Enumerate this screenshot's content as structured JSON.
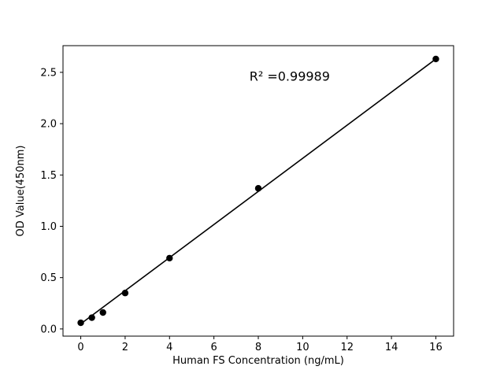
{
  "figure": {
    "background": "#ffffff",
    "frame_color": "#000000"
  },
  "chart_data": {
    "type": "scatter",
    "title": "",
    "xlabel": "Human FS Concentration (ng/mL)",
    "ylabel": "OD Value(450nm)",
    "x": [
      0,
      0.5,
      1,
      2,
      4,
      8,
      16
    ],
    "y": [
      0.06,
      0.11,
      0.16,
      0.35,
      0.69,
      1.37,
      2.63
    ],
    "trendline": {
      "x": [
        0,
        16
      ],
      "y": [
        0.05,
        2.63
      ]
    },
    "annotation": {
      "text": "R² =0.99989",
      "x": 7.6,
      "y": 2.42
    },
    "x_tick_values": [
      0,
      2,
      4,
      6,
      8,
      10,
      12,
      14,
      16
    ],
    "x_tick_labels": [
      "0",
      "2",
      "4",
      "6",
      "8",
      "10",
      "12",
      "14",
      "16"
    ],
    "y_tick_values": [
      0.0,
      0.5,
      1.0,
      1.5,
      2.0,
      2.5
    ],
    "y_tick_labels": [
      "0.0",
      "0.5",
      "1.0",
      "1.5",
      "2.0",
      "2.5"
    ],
    "xlim": [
      -0.8,
      16.8
    ],
    "ylim": [
      -0.07,
      2.76
    ],
    "grid": false,
    "legend": null,
    "marker_color": "#000000",
    "line_color": "#000000"
  }
}
